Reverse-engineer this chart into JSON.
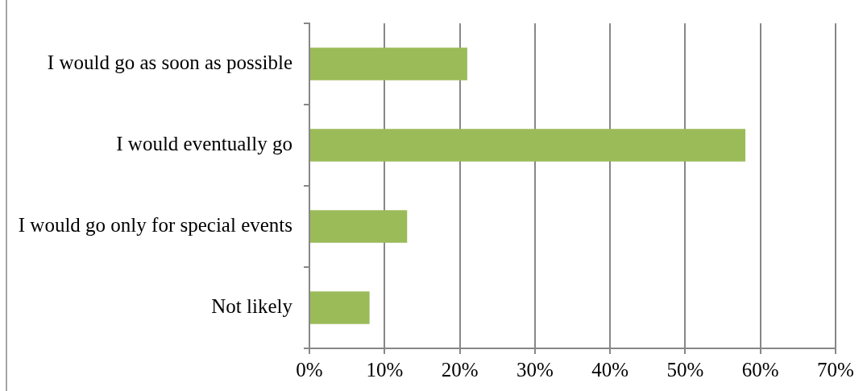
{
  "chart_data": {
    "type": "bar",
    "orientation": "horizontal",
    "categories": [
      "I would go as soon as possible",
      "I would eventually go",
      "I would go only for special events",
      "Not likely"
    ],
    "values": [
      21,
      58,
      13,
      8
    ],
    "color": "#9bbb59",
    "xlim": [
      0,
      70
    ],
    "xticks": [
      {
        "value": 0,
        "label": "0%"
      },
      {
        "value": 10,
        "label": "10%"
      },
      {
        "value": 20,
        "label": "20%"
      },
      {
        "value": 30,
        "label": "30%"
      },
      {
        "value": 40,
        "label": "40%"
      },
      {
        "value": 50,
        "label": "50%"
      },
      {
        "value": 60,
        "label": "60%"
      },
      {
        "value": 70,
        "label": "70%"
      }
    ],
    "grid": "x"
  }
}
